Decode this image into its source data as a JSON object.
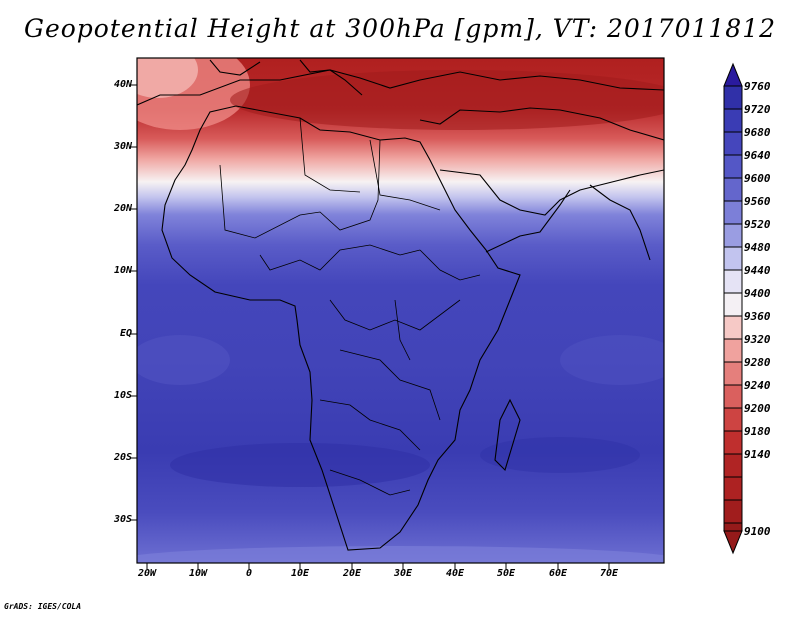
{
  "title": "Geopotential Height at 300hPa [gpm], VT: 2017011812",
  "footer": "GrADS: IGES/COLA",
  "map": {
    "variable": "Geopotential Height",
    "level": "300hPa",
    "units": "gpm",
    "valid_time": "2017011812",
    "lon_range": [
      -23,
      80
    ],
    "lat_range": [
      -37,
      45
    ],
    "lat_labels": [
      "40N",
      "30N",
      "20N",
      "10N",
      "EQ",
      "10S",
      "20S",
      "30S"
    ],
    "lat_values": [
      40,
      30,
      20,
      10,
      0,
      -10,
      -20,
      -30
    ],
    "lon_labels": [
      "20W",
      "10W",
      "0",
      "10E",
      "20E",
      "30E",
      "40E",
      "50E",
      "60E",
      "70E"
    ],
    "lon_values": [
      -20,
      -10,
      0,
      10,
      20,
      30,
      40,
      50,
      60,
      70
    ],
    "colors": {
      "land_outline": "#000000"
    }
  },
  "colorbar": {
    "levels": [
      "9760",
      "9720",
      "9680",
      "9640",
      "9600",
      "9560",
      "9520",
      "9480",
      "9440",
      "9400",
      "9360",
      "9320",
      "9280",
      "9240",
      "9200",
      "9180",
      "9140",
      "9100"
    ],
    "colors": [
      "#2a1a9e",
      "#3030a8",
      "#3a3cb4",
      "#4546bc",
      "#5457c6",
      "#6466cc",
      "#7c7fd8",
      "#9a9de2",
      "#c2c4ef",
      "#f4f0f4",
      "#f6c9c6",
      "#f0a29e",
      "#e57f7c",
      "#da605e",
      "#cd4442",
      "#bf2f2e",
      "#ad2222",
      "#951a1a"
    ]
  }
}
